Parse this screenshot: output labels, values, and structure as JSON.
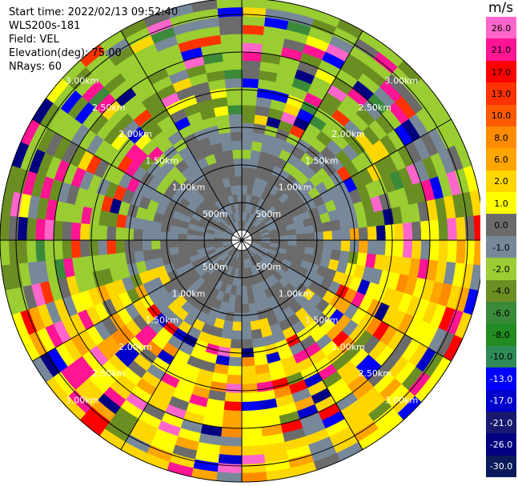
{
  "info": {
    "start_time": "Start time: 2022/02/13 09:52:40",
    "instrument": "WLS200s-181",
    "field": "Field: VEL",
    "elevation": "Elevation(deg): 75.00",
    "nrays": "NRays: 60"
  },
  "chart_data": {
    "type": "heatmap",
    "projection": "polar-ppi",
    "units": "m/s",
    "range_rings": [
      "500m",
      "1.00km",
      "1.50km",
      "2.00km",
      "2.50km",
      "3.00km"
    ],
    "colorbar": {
      "ticks": [
        "26.0",
        "21.0",
        "17.0",
        "13.0",
        "10.0",
        "8.0",
        "6.0",
        "2.0",
        "1.0",
        "0.0",
        "-1.0",
        "-2.0",
        "-4.0",
        "-6.0",
        "-8.0",
        "-10.0",
        "-13.0",
        "-17.0",
        "-21.0",
        "-26.0",
        "-30.0"
      ],
      "colors": [
        "#ff66cc",
        "#ff1493",
        "#ff0000",
        "#ff3300",
        "#ff5a00",
        "#ff8c00",
        "#ffa500",
        "#ffd700",
        "#ffff00",
        "#6b6b6b",
        "#778899",
        "#9acd32",
        "#6b8e23",
        "#3a8a3a",
        "#228b22",
        "#2e8b57",
        "#0000ff",
        "#0000cd",
        "#191970",
        "#000080",
        "#0a1a5a"
      ]
    }
  }
}
